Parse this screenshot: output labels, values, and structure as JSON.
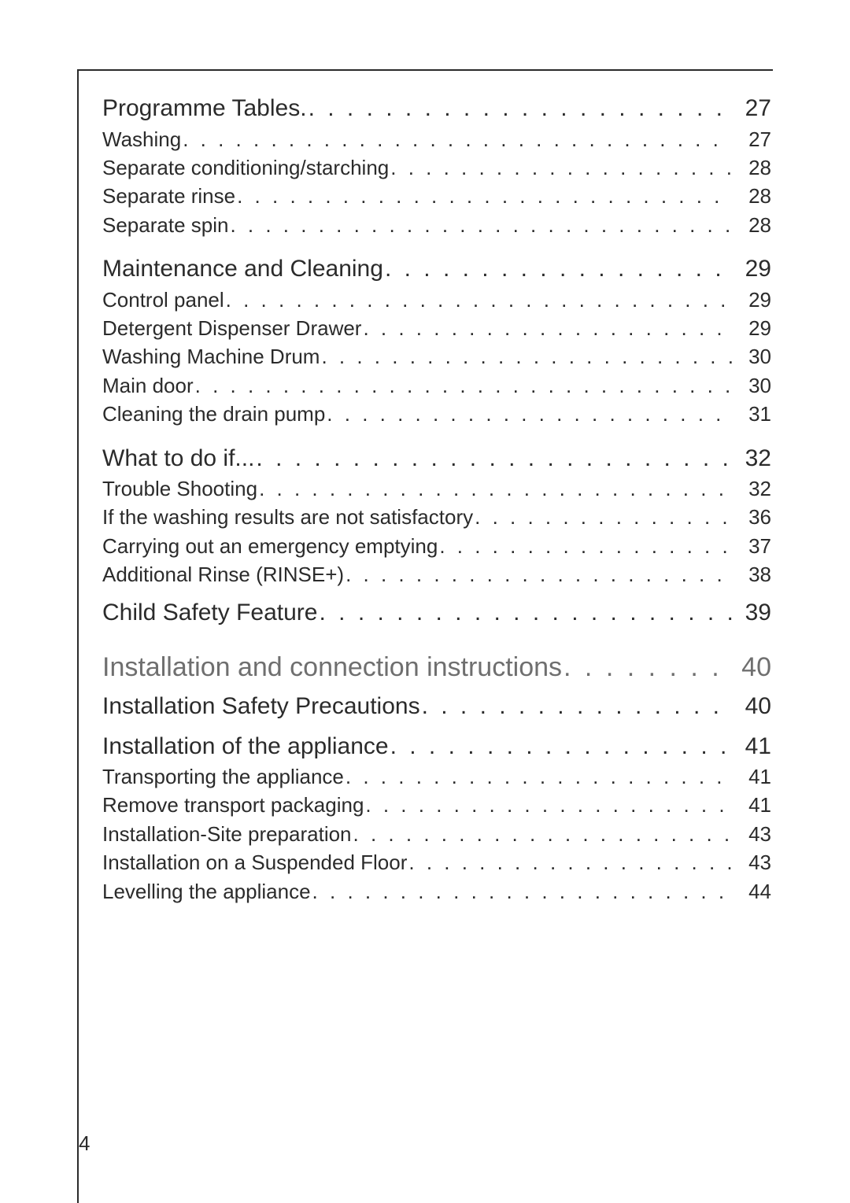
{
  "page_number": "4",
  "colors": {
    "text": "#2b2b2b",
    "muted": "#6f6f6f",
    "border": "#2b2b2b",
    "background": "#ffffff"
  },
  "typography": {
    "lvl1_fontsize_pt": 22,
    "lvl2_fontsize_pt": 19,
    "section_fontsize_pt": 25,
    "pagenum_fontsize_pt": 19,
    "font_family": "Helvetica"
  },
  "toc": [
    {
      "level": 1,
      "label": "Programme Tables.",
      "page": "27"
    },
    {
      "level": 2,
      "label": "Washing",
      "page": "27"
    },
    {
      "level": 2,
      "label": "Separate conditioning/starching",
      "page": "28"
    },
    {
      "level": 2,
      "label": "Separate rinse",
      "page": "28"
    },
    {
      "level": 2,
      "label": "Separate spin",
      "page": "28"
    },
    {
      "gap": "md"
    },
    {
      "level": 1,
      "label": "Maintenance and Cleaning",
      "page": "29"
    },
    {
      "level": 2,
      "label": "Control panel",
      "page": "29"
    },
    {
      "level": 2,
      "label": "Detergent Dispenser Drawer",
      "page": "29"
    },
    {
      "level": 2,
      "label": "Washing Machine Drum",
      "page": "30"
    },
    {
      "level": 2,
      "label": "Main door",
      "page": "30"
    },
    {
      "level": 2,
      "label": "Cleaning the drain pump",
      "page": "31"
    },
    {
      "gap": "md"
    },
    {
      "level": 1,
      "label": "What to do if...",
      "page": "32"
    },
    {
      "level": 2,
      "label": "Trouble Shooting",
      "page": "32"
    },
    {
      "level": 2,
      "label": "If the washing results are not satisfactory",
      "page": "36"
    },
    {
      "level": 2,
      "label": "Carrying out an emergency emptying",
      "page": "37"
    },
    {
      "level": 2,
      "label": "Additional Rinse (RINSE+)",
      "page": "38"
    },
    {
      "gap": "sm"
    },
    {
      "level": 1,
      "label": "Child Safety Feature",
      "page": "39"
    },
    {
      "gap": "lg"
    },
    {
      "level": 0,
      "label": "Installation and connection instructions",
      "page": "40"
    },
    {
      "gap": "sm"
    },
    {
      "level": 1,
      "label": "Installation Safety Precautions",
      "page": "40"
    },
    {
      "gap": "sm"
    },
    {
      "level": 1,
      "label": "Installation of the appliance",
      "page": "41"
    },
    {
      "level": 2,
      "label": "Transporting the appliance",
      "page": "41"
    },
    {
      "level": 2,
      "label": "Remove transport packaging",
      "page": "41"
    },
    {
      "level": 2,
      "label": "Installation-Site preparation",
      "page": "43"
    },
    {
      "level": 2,
      "label": "Installation on a Suspended Floor",
      "page": "43"
    },
    {
      "level": 2,
      "label": "Levelling the appliance",
      "page": "44"
    }
  ]
}
